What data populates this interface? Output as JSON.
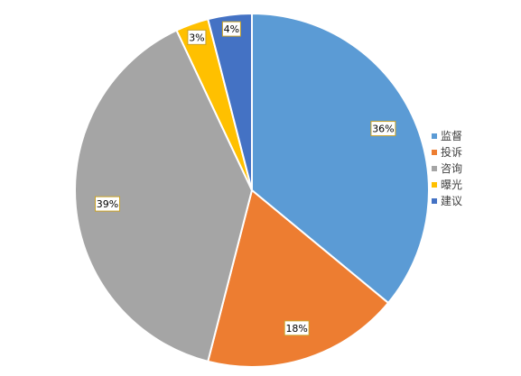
{
  "chart_data": {
    "type": "pie",
    "title": "",
    "categories": [
      "监督",
      "投诉",
      "咨询",
      "曝光",
      "建议"
    ],
    "values": [
      36,
      18,
      39,
      3,
      4
    ],
    "value_labels": [
      "36%",
      "18%",
      "39%",
      "3%",
      "4%"
    ],
    "colors": [
      "#5B9BD5",
      "#ED7D31",
      "#A5A5A5",
      "#FFC000",
      "#4472C4"
    ],
    "start_angle_deg": 0,
    "direction": "clockwise",
    "legend": {
      "position": "right",
      "entries": [
        "监督",
        "投诉",
        "咨询",
        "曝光",
        "建议"
      ]
    }
  }
}
